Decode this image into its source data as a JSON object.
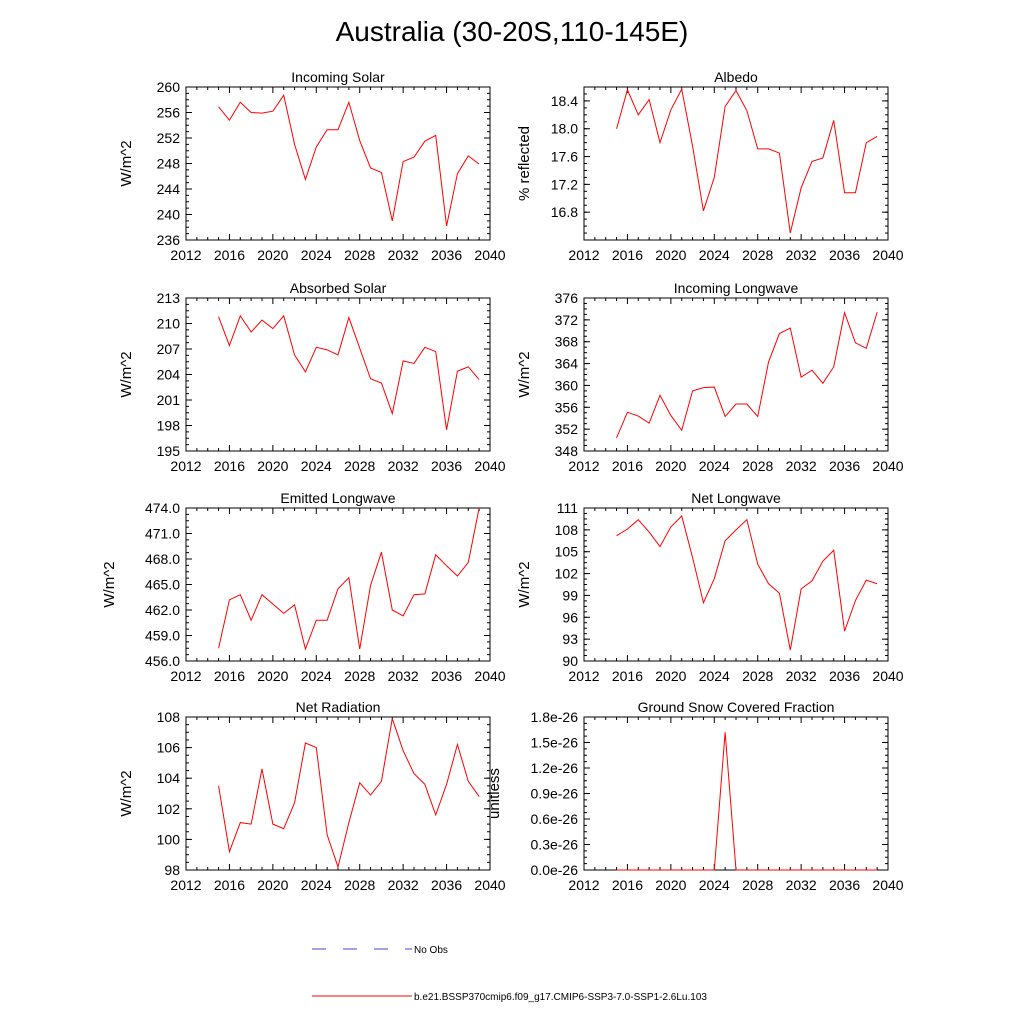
{
  "page_title": "Australia (30-20S,110-145E)",
  "colors": {
    "series": "#ff0000",
    "no_obs": "#4444cc",
    "axis": "#000000"
  },
  "legend": {
    "no_obs_label": "No Obs",
    "model_label": "b.e21.BSSP370cmip6.f09_g17.CMIP6-SSP3-7.0-SSP1-2.6Lu.103"
  },
  "chart_data": [
    {
      "type": "line",
      "title": "Incoming Solar",
      "ylabel": "W/m^2",
      "xlim": [
        2012,
        2040
      ],
      "xticks": [
        2012,
        2016,
        2020,
        2024,
        2028,
        2032,
        2036,
        2040
      ],
      "ylim": [
        236,
        260
      ],
      "yticks": [
        236,
        240,
        244,
        248,
        252,
        256,
        260
      ],
      "ytick_labels": [
        "236",
        "240",
        "244",
        "248",
        "252",
        "256",
        "260"
      ],
      "x": [
        2015,
        2016,
        2017,
        2018,
        2019,
        2020,
        2021,
        2022,
        2023,
        2024,
        2025,
        2026,
        2027,
        2028,
        2029,
        2030,
        2031,
        2032,
        2033,
        2034,
        2035,
        2036,
        2037,
        2038,
        2039
      ],
      "y": [
        256.9,
        254.8,
        257.6,
        256.0,
        255.9,
        256.2,
        258.7,
        251.0,
        245.5,
        250.6,
        253.3,
        253.3,
        257.6,
        251.6,
        247.3,
        246.6,
        239.0,
        248.3,
        249.0,
        251.5,
        252.4,
        238.2,
        246.4,
        249.2,
        247.9
      ]
    },
    {
      "type": "line",
      "title": "Albedo",
      "ylabel": "% reflected",
      "xlim": [
        2012,
        2040
      ],
      "xticks": [
        2012,
        2016,
        2020,
        2024,
        2028,
        2032,
        2036,
        2040
      ],
      "ylim": [
        16.4,
        18.6
      ],
      "yticks": [
        16.8,
        17.2,
        17.6,
        18.0,
        18.4
      ],
      "ytick_labels": [
        "16.8",
        "17.2",
        "17.6",
        "18.0",
        "18.4"
      ],
      "x": [
        2015,
        2016,
        2017,
        2018,
        2019,
        2020,
        2021,
        2022,
        2023,
        2024,
        2025,
        2026,
        2027,
        2028,
        2029,
        2030,
        2031,
        2032,
        2033,
        2034,
        2035,
        2036,
        2037,
        2038,
        2039
      ],
      "y": [
        18.0,
        18.56,
        18.2,
        18.42,
        17.8,
        18.27,
        18.57,
        17.75,
        16.82,
        17.3,
        18.32,
        18.55,
        18.26,
        17.71,
        17.71,
        17.65,
        16.5,
        17.15,
        17.53,
        17.58,
        18.12,
        17.08,
        17.08,
        17.8,
        17.89
      ]
    },
    {
      "type": "line",
      "title": "Absorbed Solar",
      "ylabel": "W/m^2",
      "xlim": [
        2012,
        2040
      ],
      "xticks": [
        2012,
        2016,
        2020,
        2024,
        2028,
        2032,
        2036,
        2040
      ],
      "ylim": [
        195,
        213
      ],
      "yticks": [
        195,
        198,
        201,
        204,
        207,
        210,
        213
      ],
      "ytick_labels": [
        "195",
        "198",
        "201",
        "204",
        "207",
        "210",
        "213"
      ],
      "x": [
        2015,
        2016,
        2017,
        2018,
        2019,
        2020,
        2021,
        2022,
        2023,
        2024,
        2025,
        2026,
        2027,
        2028,
        2029,
        2030,
        2031,
        2032,
        2033,
        2034,
        2035,
        2036,
        2037,
        2038,
        2039
      ],
      "y": [
        210.8,
        207.4,
        210.9,
        209.0,
        210.4,
        209.4,
        210.9,
        206.3,
        204.3,
        207.2,
        206.9,
        206.3,
        210.7,
        207.1,
        203.5,
        203.0,
        199.4,
        205.6,
        205.3,
        207.2,
        206.7,
        197.5,
        204.4,
        204.9,
        203.4
      ]
    },
    {
      "type": "line",
      "title": "Incoming Longwave",
      "ylabel": "W/m^2",
      "xlim": [
        2012,
        2040
      ],
      "xticks": [
        2012,
        2016,
        2020,
        2024,
        2028,
        2032,
        2036,
        2040
      ],
      "ylim": [
        348,
        376
      ],
      "yticks": [
        348,
        352,
        356,
        360,
        364,
        368,
        372,
        376
      ],
      "ytick_labels": [
        "348",
        "352",
        "356",
        "360",
        "364",
        "368",
        "372",
        "376"
      ],
      "x": [
        2015,
        2016,
        2017,
        2018,
        2019,
        2020,
        2021,
        2022,
        2023,
        2024,
        2025,
        2026,
        2027,
        2028,
        2029,
        2030,
        2031,
        2032,
        2033,
        2034,
        2035,
        2036,
        2037,
        2038,
        2039
      ],
      "y": [
        350.4,
        355.1,
        354.4,
        353.1,
        358.2,
        354.5,
        351.8,
        359.0,
        359.6,
        359.7,
        354.3,
        356.6,
        356.6,
        354.3,
        364.3,
        369.5,
        370.5,
        361.5,
        362.8,
        360.4,
        363.4,
        373.3,
        367.8,
        366.8,
        373.4
      ]
    },
    {
      "type": "line",
      "title": "Emitted Longwave",
      "ylabel": "W/m^2",
      "xlim": [
        2012,
        2040
      ],
      "xticks": [
        2012,
        2016,
        2020,
        2024,
        2028,
        2032,
        2036,
        2040
      ],
      "ylim": [
        456,
        474
      ],
      "yticks": [
        456,
        459,
        462,
        465,
        468,
        471,
        474
      ],
      "ytick_labels": [
        "456.0",
        "459.0",
        "462.0",
        "465.0",
        "468.0",
        "471.0",
        "474.0"
      ],
      "x": [
        2015,
        2016,
        2017,
        2018,
        2019,
        2020,
        2021,
        2022,
        2023,
        2024,
        2025,
        2026,
        2027,
        2028,
        2029,
        2030,
        2031,
        2032,
        2033,
        2034,
        2035,
        2036,
        2037,
        2038,
        2039
      ],
      "y": [
        457.5,
        463.2,
        463.8,
        460.8,
        463.8,
        462.7,
        461.6,
        462.6,
        457.4,
        460.8,
        460.8,
        464.5,
        465.8,
        457.4,
        464.9,
        468.8,
        462.0,
        461.3,
        463.8,
        463.9,
        468.5,
        467.2,
        466.0,
        467.6,
        474.0
      ]
    },
    {
      "type": "line",
      "title": "Net Longwave",
      "ylabel": "W/m^2",
      "xlim": [
        2012,
        2040
      ],
      "xticks": [
        2012,
        2016,
        2020,
        2024,
        2028,
        2032,
        2036,
        2040
      ],
      "ylim": [
        90,
        111
      ],
      "yticks": [
        90,
        93,
        96,
        99,
        102,
        105,
        108,
        111
      ],
      "ytick_labels": [
        "90",
        "93",
        "96",
        "99",
        "102",
        "105",
        "108",
        "111"
      ],
      "x": [
        2015,
        2016,
        2017,
        2018,
        2019,
        2020,
        2021,
        2022,
        2023,
        2024,
        2025,
        2026,
        2027,
        2028,
        2029,
        2030,
        2031,
        2032,
        2033,
        2034,
        2035,
        2036,
        2037,
        2038,
        2039
      ],
      "y": [
        107.2,
        108.1,
        109.4,
        107.7,
        105.7,
        108.4,
        109.9,
        104.2,
        98.0,
        101.3,
        106.5,
        108.0,
        109.4,
        103.3,
        100.6,
        99.3,
        91.5,
        99.9,
        101.0,
        103.7,
        105.2,
        94.1,
        98.3,
        101.1,
        100.6
      ]
    },
    {
      "type": "line",
      "title": "Net Radiation",
      "ylabel": "W/m^2",
      "xlim": [
        2012,
        2040
      ],
      "xticks": [
        2012,
        2016,
        2020,
        2024,
        2028,
        2032,
        2036,
        2040
      ],
      "ylim": [
        98,
        108
      ],
      "yticks": [
        98,
        100,
        102,
        104,
        106,
        108
      ],
      "ytick_labels": [
        "98",
        "100",
        "102",
        "104",
        "106",
        "108"
      ],
      "x": [
        2015,
        2016,
        2017,
        2018,
        2019,
        2020,
        2021,
        2022,
        2023,
        2024,
        2025,
        2026,
        2027,
        2028,
        2029,
        2030,
        2031,
        2032,
        2033,
        2034,
        2035,
        2036,
        2037,
        2038,
        2039
      ],
      "y": [
        103.5,
        99.2,
        101.1,
        101.0,
        104.6,
        101.0,
        100.7,
        102.4,
        106.3,
        106.0,
        100.3,
        98.2,
        101.1,
        103.7,
        102.9,
        103.8,
        107.9,
        105.8,
        104.3,
        103.6,
        101.6,
        103.6,
        106.2,
        103.8,
        102.8
      ]
    },
    {
      "type": "line",
      "title": "Ground Snow Covered Fraction",
      "ylabel": "unitless",
      "xlim": [
        2012,
        2040
      ],
      "xticks": [
        2012,
        2016,
        2020,
        2024,
        2028,
        2032,
        2036,
        2040
      ],
      "ylim": [
        0,
        1.8e-26
      ],
      "yticks": [
        0,
        3e-27,
        6e-27,
        9e-27,
        1.2e-26,
        1.5e-26,
        1.8e-26
      ],
      "ytick_labels": [
        "0.0e-26",
        "0.3e-26",
        "0.6e-26",
        "0.9e-26",
        "1.2e-26",
        "1.5e-26",
        "1.8e-26"
      ],
      "x": [
        2015,
        2016,
        2017,
        2018,
        2019,
        2020,
        2021,
        2022,
        2023,
        2024,
        2025,
        2026,
        2027,
        2028,
        2029,
        2030,
        2031,
        2032,
        2033,
        2034,
        2035,
        2036,
        2037,
        2038,
        2039
      ],
      "y": [
        0,
        0,
        0,
        0,
        0,
        0,
        0,
        0,
        0,
        0,
        1.62e-26,
        0,
        0,
        0,
        0,
        0,
        0,
        0,
        0,
        0,
        0,
        0,
        0,
        0,
        0
      ]
    }
  ]
}
